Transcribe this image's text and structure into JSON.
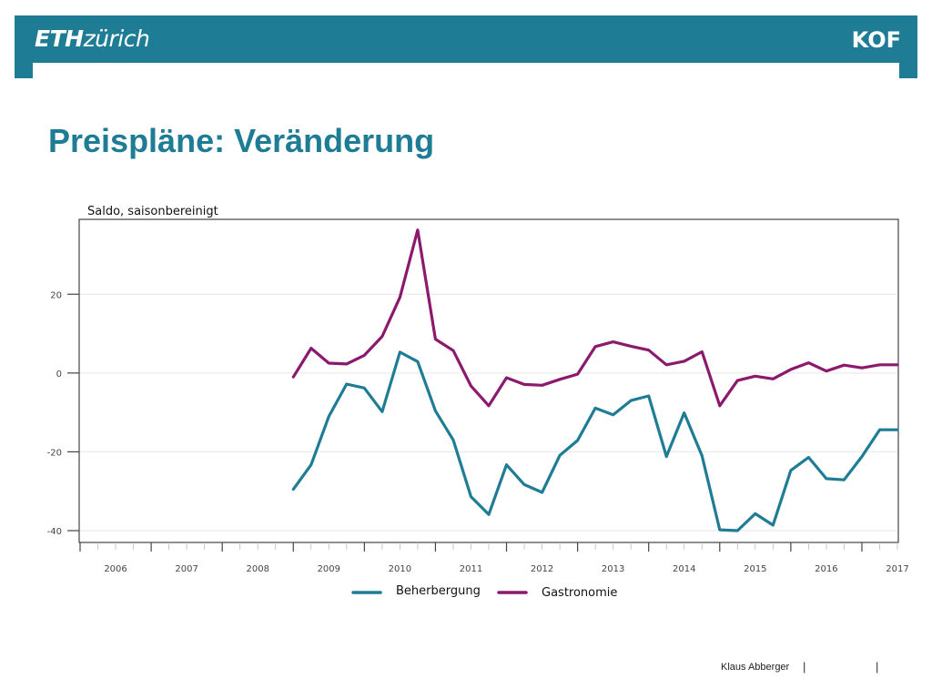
{
  "header": {
    "logo_eth_bold": "ETH",
    "logo_eth_thin": "zürich",
    "logo_kof": "KOF",
    "color": "#1f7c95"
  },
  "slide": {
    "title": "Preispläne: Veränderung"
  },
  "footer": {
    "author": "Klaus Abberger",
    "separator": "|"
  },
  "chart_data": {
    "type": "line",
    "title": "",
    "ylabel": "Saldo, saisonbereinigt",
    "xlabel": "",
    "ylim": [
      -43,
      39
    ],
    "yticks": [
      20,
      0,
      -20,
      -40
    ],
    "ytick_labels": [
      "20",
      "0",
      "-20",
      "-40"
    ],
    "x_year_labels": [
      "2006",
      "2007",
      "2008",
      "2009",
      "2010",
      "2011",
      "2012",
      "2013",
      "2014",
      "2015",
      "2016",
      "2017"
    ],
    "x_start": "2006Q1",
    "quarters_total": 47,
    "grid": true,
    "legend_position": "bottom",
    "series": [
      {
        "name": "Beherbergung",
        "color": "#1f7c95",
        "x": [
          "2009Q1",
          "2009Q2",
          "2009Q3",
          "2009Q4",
          "2010Q1",
          "2010Q2",
          "2010Q3",
          "2010Q4",
          "2011Q1",
          "2011Q2",
          "2011Q3",
          "2011Q4",
          "2012Q1",
          "2012Q2",
          "2012Q3",
          "2012Q4",
          "2013Q1",
          "2013Q2",
          "2013Q3",
          "2013Q4",
          "2014Q1",
          "2014Q2",
          "2014Q3",
          "2014Q4",
          "2015Q1",
          "2015Q2",
          "2015Q3",
          "2015Q4",
          "2016Q1",
          "2016Q2",
          "2016Q3",
          "2016Q4",
          "2017Q1",
          "2017Q2",
          "2017Q3"
        ],
        "values": [
          -29.5,
          -23.3,
          -11,
          -2.8,
          -3.8,
          -9.8,
          5.3,
          2.9,
          -9.6,
          -17,
          -31.4,
          -35.9,
          -23.3,
          -28.3,
          -30.3,
          -20.9,
          -17.1,
          -8.9,
          -10.6,
          -7,
          -5.8,
          -21.2,
          -10.1,
          -21,
          -39.8,
          -40,
          -35.7,
          -38.6,
          -24.7,
          -21.4,
          -26.8,
          -27.1,
          -21.2,
          -14.4,
          -14.4
        ]
      },
      {
        "name": "Gastronomie",
        "color": "#8b1a6e",
        "x": [
          "2009Q1",
          "2009Q2",
          "2009Q3",
          "2009Q4",
          "2010Q1",
          "2010Q2",
          "2010Q3",
          "2010Q4",
          "2011Q1",
          "2011Q2",
          "2011Q3",
          "2011Q4",
          "2012Q1",
          "2012Q2",
          "2012Q3",
          "2012Q4",
          "2013Q1",
          "2013Q2",
          "2013Q3",
          "2013Q4",
          "2014Q1",
          "2014Q2",
          "2014Q3",
          "2014Q4",
          "2015Q1",
          "2015Q2",
          "2015Q3",
          "2015Q4",
          "2016Q1",
          "2016Q2",
          "2016Q3",
          "2016Q4",
          "2017Q1",
          "2017Q2",
          "2017Q3"
        ],
        "values": [
          -1,
          6.3,
          2.5,
          2.3,
          4.5,
          9.3,
          19.2,
          36.3,
          8.6,
          5.7,
          -3.3,
          -8.3,
          -1.2,
          -2.9,
          -3.1,
          -1.6,
          -0.3,
          6.7,
          7.9,
          6.8,
          5.8,
          2.1,
          3,
          5.4,
          -8.3,
          -1.9,
          -0.8,
          -1.5,
          0.9,
          2.6,
          0.5,
          2,
          1.3,
          2.1,
          2.1
        ]
      }
    ]
  }
}
